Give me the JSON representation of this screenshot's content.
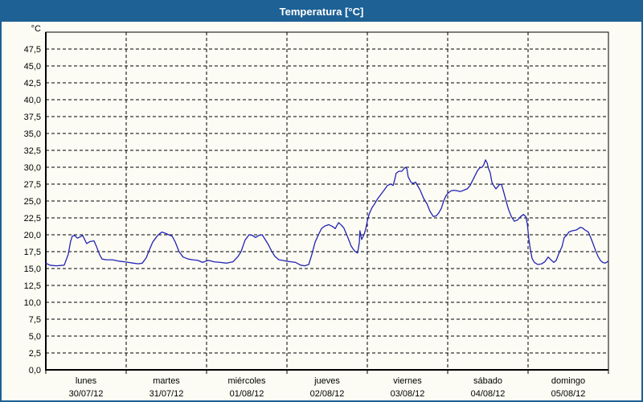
{
  "window": {
    "title": "Temperatura [°C]"
  },
  "colors": {
    "titlebar_bg": "#1d6195",
    "window_border": "#1d6195",
    "page_bg": "#fcfcf4",
    "plot_bg": "#fcfcf4",
    "grid": "#000000",
    "axis": "#000000",
    "line": "#2323b4",
    "title_text": "#ffffff",
    "label_text": "#000000"
  },
  "chart_data": {
    "type": "line",
    "title": "Temperatura [°C]",
    "unit_label": "°C",
    "ylim": [
      0,
      50
    ],
    "yticks": [
      0,
      2.5,
      5,
      7.5,
      10,
      12.5,
      15,
      17.5,
      20,
      22.5,
      25,
      27.5,
      30,
      32.5,
      35,
      37.5,
      40,
      42.5,
      45,
      47.5
    ],
    "decimal_separator": ",",
    "x_unit": "hours",
    "xlim": [
      0,
      168
    ],
    "grid": "dashed",
    "days": [
      {
        "name": "lunes",
        "date": "30/07/12"
      },
      {
        "name": "martes",
        "date": "31/07/12"
      },
      {
        "name": "miércoles",
        "date": "01/08/12"
      },
      {
        "name": "jueves",
        "date": "02/08/12"
      },
      {
        "name": "viernes",
        "date": "03/08/12"
      },
      {
        "name": "sábado",
        "date": "04/08/12"
      },
      {
        "name": "domingo",
        "date": "05/08/12"
      }
    ],
    "series": [
      {
        "name": "Temperatura",
        "color": "#2323b4",
        "points": [
          [
            0,
            15.8
          ],
          [
            1.2,
            15.5
          ],
          [
            3.1,
            15.4
          ],
          [
            5.5,
            15.5
          ],
          [
            6.7,
            17.1
          ],
          [
            7.4,
            19.0
          ],
          [
            7.9,
            19.8
          ],
          [
            8.6,
            19.9
          ],
          [
            9.4,
            19.5
          ],
          [
            10.3,
            19.7
          ],
          [
            11,
            19.9
          ],
          [
            12.2,
            18.7
          ],
          [
            13.2,
            19.0
          ],
          [
            14.4,
            19.1
          ],
          [
            15.1,
            18.3
          ],
          [
            16.1,
            17.0
          ],
          [
            16.8,
            16.4
          ],
          [
            18,
            16.3
          ],
          [
            19.9,
            16.3
          ],
          [
            21.8,
            16.1
          ],
          [
            23.5,
            16.0
          ],
          [
            24.7,
            15.9
          ],
          [
            26.2,
            15.8
          ],
          [
            27.6,
            15.7
          ],
          [
            28.8,
            15.8
          ],
          [
            30,
            16.6
          ],
          [
            30.7,
            17.5
          ],
          [
            31.9,
            18.9
          ],
          [
            33.4,
            19.9
          ],
          [
            34.6,
            20.4
          ],
          [
            35.8,
            20.2
          ],
          [
            36.7,
            20.0
          ],
          [
            37.7,
            19.8
          ],
          [
            38.6,
            19.0
          ],
          [
            39.8,
            17.5
          ],
          [
            41,
            16.7
          ],
          [
            42.5,
            16.4
          ],
          [
            43.9,
            16.3
          ],
          [
            45.4,
            16.2
          ],
          [
            46.8,
            15.9
          ],
          [
            47.8,
            16.1
          ],
          [
            48.7,
            16.2
          ],
          [
            50.2,
            16.0
          ],
          [
            52.1,
            15.9
          ],
          [
            54,
            15.8
          ],
          [
            55.9,
            16.0
          ],
          [
            57.4,
            16.8
          ],
          [
            58.3,
            17.5
          ],
          [
            59.5,
            19.2
          ],
          [
            60.7,
            20.0
          ],
          [
            61.7,
            19.9
          ],
          [
            62.6,
            19.6
          ],
          [
            63.6,
            19.9
          ],
          [
            64.6,
            20.0
          ],
          [
            65.5,
            19.3
          ],
          [
            66.5,
            18.5
          ],
          [
            67.4,
            17.6
          ],
          [
            68.4,
            16.8
          ],
          [
            69.6,
            16.3
          ],
          [
            70.8,
            16.2
          ],
          [
            71.8,
            16.1
          ],
          [
            73.2,
            16.0
          ],
          [
            74.6,
            15.9
          ],
          [
            76.1,
            15.5
          ],
          [
            77.3,
            15.4
          ],
          [
            78.5,
            15.6
          ],
          [
            79.4,
            17.0
          ],
          [
            80.4,
            18.9
          ],
          [
            81.4,
            20.0
          ],
          [
            82.3,
            20.9
          ],
          [
            83.3,
            21.3
          ],
          [
            84.5,
            21.5
          ],
          [
            85.7,
            21.2
          ],
          [
            86.4,
            20.9
          ],
          [
            87.4,
            21.8
          ],
          [
            88.3,
            21.4
          ],
          [
            89,
            21.0
          ],
          [
            90.2,
            19.6
          ],
          [
            91.2,
            18.3
          ],
          [
            92.2,
            17.6
          ],
          [
            93.1,
            17.3
          ],
          [
            93.6,
            18.8
          ],
          [
            93.8,
            20.6
          ],
          [
            94.3,
            19.3
          ],
          [
            95,
            20.0
          ],
          [
            95.5,
            20.8
          ],
          [
            96,
            22.0
          ],
          [
            96.5,
            23.0
          ],
          [
            97.4,
            24.0
          ],
          [
            98.2,
            24.6
          ],
          [
            98.9,
            25.2
          ],
          [
            99.8,
            25.8
          ],
          [
            101,
            26.6
          ],
          [
            102,
            27.3
          ],
          [
            103,
            27.5
          ],
          [
            103.7,
            27.3
          ],
          [
            104.2,
            28.2
          ],
          [
            104.6,
            29.1
          ],
          [
            105.4,
            29.4
          ],
          [
            106.3,
            29.4
          ],
          [
            107.3,
            30.0
          ],
          [
            107.8,
            29.8
          ],
          [
            108.2,
            28.6
          ],
          [
            109,
            27.8
          ],
          [
            109.7,
            27.6
          ],
          [
            110.4,
            27.8
          ],
          [
            111.1,
            27.2
          ],
          [
            111.8,
            26.6
          ],
          [
            112.8,
            25.4
          ],
          [
            113.8,
            24.6
          ],
          [
            114.7,
            23.5
          ],
          [
            115.7,
            22.7
          ],
          [
            116.6,
            22.8
          ],
          [
            117.4,
            23.3
          ],
          [
            118.1,
            23.9
          ],
          [
            118.8,
            25.0
          ],
          [
            119.5,
            25.8
          ],
          [
            120.2,
            26.2
          ],
          [
            121,
            26.5
          ],
          [
            121.9,
            26.6
          ],
          [
            122.9,
            26.5
          ],
          [
            123.8,
            26.4
          ],
          [
            124.8,
            26.6
          ],
          [
            125.8,
            26.8
          ],
          [
            126.7,
            27.3
          ],
          [
            127.4,
            28.0
          ],
          [
            128.2,
            28.8
          ],
          [
            128.9,
            29.5
          ],
          [
            129.6,
            29.9
          ],
          [
            130.3,
            30.0
          ],
          [
            130.8,
            30.4
          ],
          [
            131.3,
            31.1
          ],
          [
            131.8,
            30.6
          ],
          [
            132.2,
            29.8
          ],
          [
            132.7,
            29.2
          ],
          [
            133.2,
            27.8
          ],
          [
            133.7,
            27.3
          ],
          [
            134.4,
            26.8
          ],
          [
            134.9,
            27.1
          ],
          [
            135.6,
            27.5
          ],
          [
            136.1,
            27.4
          ],
          [
            136.8,
            26.2
          ],
          [
            137.5,
            24.9
          ],
          [
            138.2,
            23.7
          ],
          [
            139,
            22.7
          ],
          [
            139.9,
            22.0
          ],
          [
            140.9,
            22.2
          ],
          [
            141.8,
            22.7
          ],
          [
            142.6,
            23.0
          ],
          [
            143.3,
            22.7
          ],
          [
            143.8,
            21.5
          ],
          [
            144.2,
            19.5
          ],
          [
            144.7,
            17.8
          ],
          [
            145.2,
            16.5
          ],
          [
            145.9,
            15.9
          ],
          [
            146.9,
            15.6
          ],
          [
            148.1,
            15.7
          ],
          [
            149,
            16.0
          ],
          [
            150,
            16.7
          ],
          [
            151,
            16.2
          ],
          [
            151.7,
            15.9
          ],
          [
            152.4,
            16.2
          ],
          [
            153.4,
            17.5
          ],
          [
            154.1,
            18.2
          ],
          [
            154.8,
            19.6
          ],
          [
            155.5,
            19.9
          ],
          [
            156.2,
            20.4
          ],
          [
            157.2,
            20.6
          ],
          [
            158.4,
            20.7
          ],
          [
            159.6,
            21.1
          ],
          [
            160.3,
            21.0
          ],
          [
            161,
            20.7
          ],
          [
            162,
            20.4
          ],
          [
            162.7,
            19.6
          ],
          [
            163.4,
            18.7
          ],
          [
            164.2,
            17.6
          ],
          [
            164.9,
            16.8
          ],
          [
            165.6,
            16.2
          ],
          [
            166.3,
            15.9
          ],
          [
            167,
            15.8
          ],
          [
            168,
            16.1
          ]
        ]
      }
    ]
  }
}
